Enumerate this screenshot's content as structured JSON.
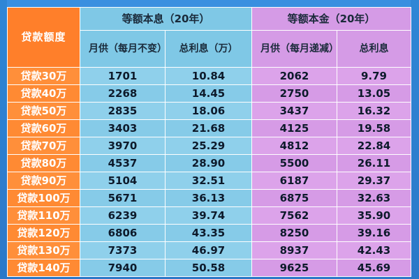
{
  "header": {
    "loan_amount": "贷款额度",
    "equal_payment": "等额本息（20年）",
    "equal_principal": "等额本金（20年）",
    "monthly_fixed": "月供（每月不变）",
    "total_interest_wan": "总利息（万）",
    "monthly_decreasing": "月供（每月递减）",
    "total_interest": "总利息"
  },
  "rows": [
    {
      "loan": "贷款30万",
      "ep_monthly": "1701",
      "ep_interest": "10.84",
      "pr_monthly": "2062",
      "pr_interest": "9.79"
    },
    {
      "loan": "贷款40万",
      "ep_monthly": "2268",
      "ep_interest": "14.45",
      "pr_monthly": "2750",
      "pr_interest": "13.05"
    },
    {
      "loan": "贷款50万",
      "ep_monthly": "2835",
      "ep_interest": "18.06",
      "pr_monthly": "3437",
      "pr_interest": "16.32"
    },
    {
      "loan": "贷款60万",
      "ep_monthly": "3403",
      "ep_interest": "21.68",
      "pr_monthly": "4125",
      "pr_interest": "19.58"
    },
    {
      "loan": "贷款70万",
      "ep_monthly": "3970",
      "ep_interest": "25.29",
      "pr_monthly": "4812",
      "pr_interest": "22.84"
    },
    {
      "loan": "贷款80万",
      "ep_monthly": "4537",
      "ep_interest": "28.90",
      "pr_monthly": "5500",
      "pr_interest": "26.11"
    },
    {
      "loan": "贷款90万",
      "ep_monthly": "5104",
      "ep_interest": "32.51",
      "pr_monthly": "6187",
      "pr_interest": "29.37"
    },
    {
      "loan": "贷款100万",
      "ep_monthly": "5671",
      "ep_interest": "36.13",
      "pr_monthly": "6875",
      "pr_interest": "32.63"
    },
    {
      "loan": "贷款110万",
      "ep_monthly": "6239",
      "ep_interest": "39.74",
      "pr_monthly": "7562",
      "pr_interest": "35.90"
    },
    {
      "loan": "贷款120万",
      "ep_monthly": "6806",
      "ep_interest": "43.35",
      "pr_monthly": "8250",
      "pr_interest": "39.16"
    },
    {
      "loan": "贷款130万",
      "ep_monthly": "7373",
      "ep_interest": "46.97",
      "pr_monthly": "8937",
      "pr_interest": "42.43"
    },
    {
      "loan": "贷款140万",
      "ep_monthly": "7940",
      "ep_interest": "50.58",
      "pr_monthly": "9625",
      "pr_interest": "45.69"
    }
  ],
  "colors": {
    "label_orange": "#ff8a33",
    "blue_section": "#8fd0eb",
    "purple_section": "#dca3ea",
    "background": "#2b78c8"
  }
}
